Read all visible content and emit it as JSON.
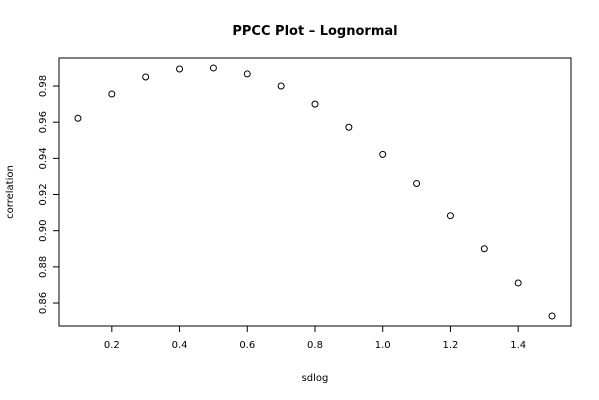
{
  "chart_data": {
    "type": "scatter",
    "title": "PPCC Plot – Lognormal",
    "x_label": "sdlog",
    "y_label": "correlation",
    "x": [
      0.1,
      0.2,
      0.3,
      0.4,
      0.5,
      0.6,
      0.7,
      0.8,
      0.9,
      1.0,
      1.1,
      1.2,
      1.3,
      1.4,
      1.5
    ],
    "values": [
      0.9622,
      0.9756,
      0.985,
      0.9894,
      0.99,
      0.9867,
      0.98,
      0.97,
      0.9572,
      0.9422,
      0.9261,
      0.9083,
      0.89,
      0.8711,
      0.8528
    ],
    "color": "#000000",
    "xlim": [
      0.044,
      1.556
    ],
    "ylim": [
      0.8473,
      0.9955
    ],
    "xticks": [
      0.2,
      0.4,
      0.6,
      0.8,
      {
        "value": 1.0,
        "label": "1.0"
      },
      1.2,
      1.4
    ],
    "yticks": [
      0.86,
      0.88,
      {
        "value": 0.9,
        "label": "0.90"
      },
      0.92,
      0.94,
      0.96,
      0.98
    ]
  }
}
